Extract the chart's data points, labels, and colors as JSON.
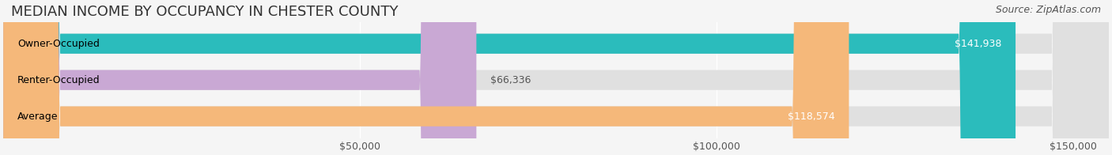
{
  "title": "MEDIAN INCOME BY OCCUPANCY IN CHESTER COUNTY",
  "source": "Source: ZipAtlas.com",
  "categories": [
    "Owner-Occupied",
    "Renter-Occupied",
    "Average"
  ],
  "values": [
    141938,
    66336,
    118574
  ],
  "bar_colors": [
    "#2bbcbc",
    "#c9a8d4",
    "#f5b87a"
  ],
  "bar_edge_colors": [
    "#2bbcbc",
    "#c9a8d4",
    "#f5b87a"
  ],
  "value_labels": [
    "$141,938",
    "$66,336",
    "$118,574"
  ],
  "xlim": [
    0,
    155000
  ],
  "xticks": [
    0,
    50000,
    100000,
    150000
  ],
  "xtick_labels": [
    "",
    "$50,000",
    "$100,000",
    "$150,000"
  ],
  "background_color": "#f5f5f5",
  "bar_background_color": "#e8e8e8",
  "title_fontsize": 13,
  "label_fontsize": 9,
  "value_fontsize": 9,
  "source_fontsize": 9
}
